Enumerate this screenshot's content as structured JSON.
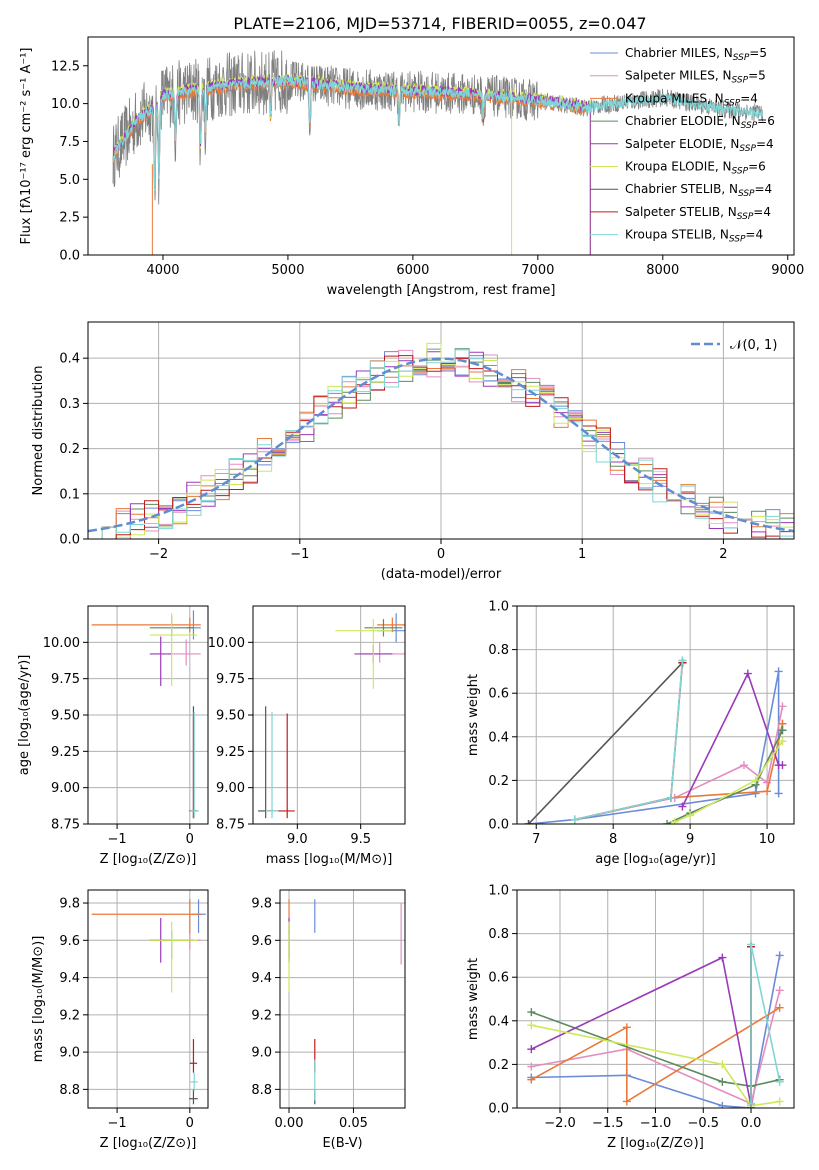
{
  "figure_title": "PLATE=2106, MJD=53714, FIBERID=0055, z=0.047",
  "colors": {
    "chabrier_miles": "#6a8cd8",
    "salpeter_miles": "#e58cc0",
    "kroupa_miles": "#e8793a",
    "chabrier_elodie": "#5d8a5f",
    "salpeter_elodie": "#9a3ab8",
    "kroupa_elodie": "#cde85a",
    "chabrier_stelib": "#555555",
    "salpeter_stelib": "#c21a1a",
    "kroupa_stelib": "#7fd6d6",
    "data": "#7f7f7f",
    "grid": "#b0b0b0",
    "gauss": "#5f8dd3"
  },
  "legend_entries": [
    {
      "label": "Chabrier MILES, N",
      "sub": "SSP",
      "tail": "=5",
      "color": "#6a8cd8"
    },
    {
      "label": "Salpeter MILES, N",
      "sub": "SSP",
      "tail": "=5",
      "color": "#e58cc0"
    },
    {
      "label": "Kroupa MILES, N",
      "sub": "SSP",
      "tail": "=4",
      "color": "#e8793a"
    },
    {
      "label": "Chabrier ELODIE, N",
      "sub": "SSP",
      "tail": "=6",
      "color": "#5d8a5f"
    },
    {
      "label": "Salpeter ELODIE, N",
      "sub": "SSP",
      "tail": "=4",
      "color": "#9a3ab8"
    },
    {
      "label": "Kroupa ELODIE, N",
      "sub": "SSP",
      "tail": "=6",
      "color": "#cde85a"
    },
    {
      "label": "Chabrier STELIB, N",
      "sub": "SSP",
      "tail": "=4",
      "color": "#555555"
    },
    {
      "label": "Salpeter STELIB, N",
      "sub": "SSP",
      "tail": "=4",
      "color": "#c21a1a"
    },
    {
      "label": "Kroupa STELIB, N",
      "sub": "SSP",
      "tail": "=4",
      "color": "#7fd6d6"
    }
  ],
  "chart_data": [
    {
      "id": "spectrum",
      "type": "line",
      "xlabel": "wavelength [Angstrom, rest frame]",
      "ylabel": "Flux [fλ10⁻¹⁷ erg cm⁻² s⁻¹ A⁻¹]",
      "xlim": [
        3400,
        9050
      ],
      "ylim": [
        0,
        14.4
      ],
      "xticks": [
        "4000",
        "5000",
        "6000",
        "7000",
        "8000",
        "9000"
      ],
      "yticks": [
        "0.0",
        "2.5",
        "5.0",
        "7.5",
        "10.0",
        "12.5"
      ],
      "continuum": {
        "x": [
          3600,
          3700,
          3800,
          3900,
          4000,
          4200,
          4500,
          5000,
          5500,
          6000,
          6500,
          7000,
          7400,
          7500,
          8000,
          8500,
          8800
        ],
        "y": [
          6.5,
          7.8,
          9.0,
          9.6,
          10.5,
          10.8,
          11.2,
          11.5,
          11.0,
          10.8,
          10.6,
          10.2,
          9.7,
          9.9,
          10.4,
          9.6,
          9.4
        ]
      },
      "grid": false,
      "legend": "top-right"
    },
    {
      "id": "residuals",
      "type": "histogram",
      "xlabel": "(data-model)/error",
      "ylabel": "Normed distribution",
      "xlim": [
        -2.5,
        2.5
      ],
      "ylim": [
        0,
        0.48
      ],
      "xticks": [
        "−2",
        "−1",
        "0",
        "1",
        "2"
      ],
      "yticks": [
        "0.0",
        "0.1",
        "0.2",
        "0.3",
        "0.4"
      ],
      "bin_width": 0.1,
      "gauss_label": "𝒩(0, 1)",
      "grid": true,
      "legend": "top-right"
    },
    {
      "id": "age_vs_Z",
      "type": "errorbar",
      "xlabel": "Z [log₁₀(Z/Z⊙)]",
      "ylabel": "age  [log₁₀(age/yr)]",
      "xlim": [
        -1.4,
        0.25
      ],
      "ylim": [
        8.75,
        10.25
      ],
      "xticks": [
        -1,
        0
      ],
      "yticks": [
        8.75,
        9.0,
        9.25,
        9.5,
        9.75,
        10.0
      ],
      "points": [
        {
          "x": 0.05,
          "y": 10.1,
          "xerr": [
            0.1,
            0.1
          ],
          "yerr": [
            0.08,
            0.12
          ],
          "color": "#6a8cd8"
        },
        {
          "x": -0.05,
          "y": 9.92,
          "xerr": [
            0.25,
            0.2
          ],
          "yerr": [
            0.08,
            0.1
          ],
          "color": "#e58cc0"
        },
        {
          "x": 0.0,
          "y": 10.12,
          "xerr": [
            1.35,
            0.15
          ],
          "yerr": [
            0.05,
            0.05
          ],
          "color": "#e8793a"
        },
        {
          "x": -0.25,
          "y": 10.1,
          "xerr": [
            0.3,
            0.3
          ],
          "yerr": [
            0.06,
            0.08
          ],
          "color": "#5d8a5f"
        },
        {
          "x": -0.4,
          "y": 9.92,
          "xerr": [
            0.15,
            0.15
          ],
          "yerr": [
            0.22,
            0.12
          ],
          "color": "#9a3ab8"
        },
        {
          "x": -0.25,
          "y": 10.05,
          "xerr": [
            0.3,
            0.35
          ],
          "yerr": [
            0.35,
            0.15
          ],
          "color": "#cde85a"
        },
        {
          "x": 0.05,
          "y": 8.84,
          "xerr": [
            0.06,
            0.06
          ],
          "yerr": [
            0.05,
            0.72
          ],
          "color": "#555555"
        },
        {
          "x": 0.05,
          "y": 8.84,
          "xerr": [
            0.05,
            0.05
          ],
          "yerr": [
            0.05,
            0.65
          ],
          "color": "#c21a1a"
        },
        {
          "x": 0.06,
          "y": 8.84,
          "xerr": [
            0.06,
            0.06
          ],
          "yerr": [
            0.05,
            0.68
          ],
          "color": "#7fd6d6"
        }
      ]
    },
    {
      "id": "age_vs_mass",
      "type": "errorbar",
      "xlabel": "mass [log₁₀(M/M⊙)]",
      "ylabel": "",
      "xlim": [
        8.65,
        9.85
      ],
      "ylim": [
        8.75,
        10.25
      ],
      "xticks": [
        9.0,
        9.5
      ],
      "yticks": [
        8.75,
        9.0,
        9.25,
        9.5,
        9.75,
        10.0
      ],
      "points": [
        {
          "x": 9.78,
          "y": 10.08,
          "xerr": [
            0.15,
            0.12
          ],
          "yerr": [
            0.08,
            0.12
          ],
          "color": "#6a8cd8"
        },
        {
          "x": 9.65,
          "y": 9.92,
          "xerr": [
            0.15,
            0.2
          ],
          "yerr": [
            0.06,
            0.08
          ],
          "color": "#e58cc0"
        },
        {
          "x": 9.75,
          "y": 10.12,
          "xerr": [
            0.12,
            0.1
          ],
          "yerr": [
            0.05,
            0.05
          ],
          "color": "#e8793a"
        },
        {
          "x": 9.68,
          "y": 10.1,
          "xerr": [
            0.15,
            0.15
          ],
          "yerr": [
            0.06,
            0.06
          ],
          "color": "#5d8a5f"
        },
        {
          "x": 9.6,
          "y": 9.92,
          "xerr": [
            0.15,
            0.15
          ],
          "yerr": [
            0.06,
            0.06
          ],
          "color": "#9a3ab8"
        },
        {
          "x": 9.6,
          "y": 10.08,
          "xerr": [
            0.3,
            0.15
          ],
          "yerr": [
            0.4,
            0.08
          ],
          "color": "#cde85a"
        },
        {
          "x": 8.75,
          "y": 8.84,
          "xerr": [
            0.06,
            0.06
          ],
          "yerr": [
            0.05,
            0.72
          ],
          "color": "#555555"
        },
        {
          "x": 8.92,
          "y": 8.84,
          "xerr": [
            0.15,
            0.06
          ],
          "yerr": [
            0.05,
            0.67
          ],
          "color": "#c21a1a"
        },
        {
          "x": 8.8,
          "y": 8.84,
          "xerr": [
            0.05,
            0.05
          ],
          "yerr": [
            0.05,
            0.68
          ],
          "color": "#7fd6d6"
        }
      ]
    },
    {
      "id": "weight_vs_age",
      "type": "line",
      "xlabel": "age  [log₁₀(age/yr)]",
      "ylabel": "mass weight",
      "xlim": [
        6.75,
        10.35
      ],
      "ylim": [
        0,
        1.0
      ],
      "xticks": [
        7,
        8,
        9,
        10
      ],
      "yticks": [
        0.0,
        0.2,
        0.4,
        0.6,
        0.8,
        1.0
      ],
      "series": [
        {
          "color": "#6a8cd8",
          "x": [
            6.9,
            7.5,
            9.85,
            10.15,
            10.15
          ],
          "y": [
            0.0,
            0.02,
            0.14,
            0.7,
            0.14
          ]
        },
        {
          "color": "#e58cc0",
          "x": [
            7.5,
            8.8,
            9.7,
            10.0,
            10.2
          ],
          "y": [
            0.02,
            0.12,
            0.27,
            0.19,
            0.54
          ]
        },
        {
          "color": "#e8793a",
          "x": [
            7.5,
            8.75,
            10.0,
            10.2,
            10.2
          ],
          "y": [
            0.02,
            0.12,
            0.15,
            0.46,
            0.46
          ]
        },
        {
          "color": "#5d8a5f",
          "x": [
            8.7,
            9.0,
            9.85,
            10.2,
            10.2
          ],
          "y": [
            0.0,
            0.05,
            0.18,
            0.43,
            0.43
          ]
        },
        {
          "color": "#9a3ab8",
          "x": [
            8.9,
            9.75,
            10.15,
            10.2
          ],
          "y": [
            0.08,
            0.69,
            0.27,
            0.27
          ]
        },
        {
          "color": "#cde85a",
          "x": [
            8.8,
            9.0,
            9.85,
            10.2,
            10.2
          ],
          "y": [
            0.01,
            0.04,
            0.2,
            0.38,
            0.38
          ]
        },
        {
          "color": "#555555",
          "x": [
            6.9,
            8.9,
            8.9
          ],
          "y": [
            0.0,
            0.74,
            0.74
          ]
        },
        {
          "color": "#c21a1a",
          "x": [
            7.5,
            8.75,
            8.9,
            8.9
          ],
          "y": [
            0.02,
            0.12,
            0.74,
            0.74
          ]
        },
        {
          "color": "#7fd6d6",
          "x": [
            7.5,
            8.75,
            8.9,
            8.9
          ],
          "y": [
            0.02,
            0.12,
            0.75,
            0.75
          ]
        }
      ]
    },
    {
      "id": "mass_vs_Z",
      "type": "errorbar",
      "xlabel": "Z [log₁₀(Z/Z⊙)]",
      "ylabel": "mass [log₁₀(M/M⊙)]",
      "xlim": [
        -1.4,
        0.25
      ],
      "ylim": [
        8.7,
        9.87
      ],
      "xticks": [
        -1,
        0
      ],
      "yticks": [
        8.8,
        9.0,
        9.2,
        9.4,
        9.6,
        9.8
      ],
      "points": [
        {
          "x": 0.12,
          "y": 9.74,
          "xerr": [
            0.1,
            0.1
          ],
          "yerr": [
            0.1,
            0.08
          ],
          "color": "#6a8cd8"
        },
        {
          "x": 0.0,
          "y": 9.6,
          "xerr": [
            0.2,
            0.15
          ],
          "yerr": [
            0.05,
            0.05
          ],
          "color": "#e58cc0"
        },
        {
          "x": 0.0,
          "y": 9.74,
          "xerr": [
            1.35,
            0.15
          ],
          "yerr": [
            0.1,
            0.08
          ],
          "color": "#e8793a"
        },
        {
          "x": -0.25,
          "y": 9.6,
          "xerr": [
            0.3,
            0.3
          ],
          "yerr": [
            0.1,
            0.05
          ],
          "color": "#5d8a5f"
        },
        {
          "x": -0.4,
          "y": 9.6,
          "xerr": [
            0.15,
            0.15
          ],
          "yerr": [
            0.12,
            0.12
          ],
          "color": "#9a3ab8"
        },
        {
          "x": -0.25,
          "y": 9.6,
          "xerr": [
            0.3,
            0.35
          ],
          "yerr": [
            0.28,
            0.1
          ],
          "color": "#cde85a"
        },
        {
          "x": 0.05,
          "y": 8.75,
          "xerr": [
            0.06,
            0.06
          ],
          "yerr": [
            0.03,
            0.05
          ],
          "color": "#555555"
        },
        {
          "x": 0.05,
          "y": 8.94,
          "xerr": [
            0.05,
            0.05
          ],
          "yerr": [
            0.05,
            0.13
          ],
          "color": "#c21a1a"
        },
        {
          "x": 0.06,
          "y": 8.84,
          "xerr": [
            0.05,
            0.05
          ],
          "yerr": [
            0.05,
            0.05
          ],
          "color": "#7fd6d6"
        }
      ]
    },
    {
      "id": "mass_vs_ebv",
      "type": "errorbar",
      "xlabel": "E(B-V)",
      "ylabel": "",
      "xlim": [
        -0.007,
        0.09
      ],
      "ylim": [
        8.7,
        9.87
      ],
      "xticks": [
        0.0,
        0.05
      ],
      "yticks": [
        8.8,
        9.0,
        9.2,
        9.4,
        9.6,
        9.8
      ],
      "points": [
        {
          "x": 0.02,
          "y": 9.74,
          "xerr": [
            0,
            0
          ],
          "yerr": [
            0.1,
            0.08
          ],
          "color": "#6a8cd8"
        },
        {
          "x": 0.087,
          "y": 9.6,
          "xerr": [
            0,
            0
          ],
          "yerr": [
            0.13,
            0.2
          ],
          "color": "#e58cc0"
        },
        {
          "x": 0.0,
          "y": 9.74,
          "xerr": [
            0,
            0
          ],
          "yerr": [
            0.1,
            0.08
          ],
          "color": "#e8793a"
        },
        {
          "x": 0.0,
          "y": 9.6,
          "xerr": [
            0,
            0
          ],
          "yerr": [
            0.1,
            0.05
          ],
          "color": "#5d8a5f"
        },
        {
          "x": 0.0,
          "y": 9.6,
          "xerr": [
            0,
            0
          ],
          "yerr": [
            0.12,
            0.12
          ],
          "color": "#9a3ab8"
        },
        {
          "x": 0.0,
          "y": 9.6,
          "xerr": [
            0,
            0
          ],
          "yerr": [
            0.28,
            0.1
          ],
          "color": "#cde85a"
        },
        {
          "x": 0.02,
          "y": 8.75,
          "xerr": [
            0,
            0
          ],
          "yerr": [
            0.03,
            0.05
          ],
          "color": "#555555"
        },
        {
          "x": 0.02,
          "y": 8.94,
          "xerr": [
            0,
            0
          ],
          "yerr": [
            0.05,
            0.13
          ],
          "color": "#c21a1a"
        },
        {
          "x": 0.02,
          "y": 8.84,
          "xerr": [
            0,
            0
          ],
          "yerr": [
            0.1,
            0.12
          ],
          "color": "#7fd6d6"
        }
      ]
    },
    {
      "id": "weight_vs_Z",
      "type": "line",
      "xlabel": "Z [log₁₀(Z/Z⊙)]",
      "ylabel": "mass weight",
      "xlim": [
        -2.45,
        0.45
      ],
      "ylim": [
        0,
        1.0
      ],
      "xticks": [
        -2.0,
        -1.5,
        -1.0,
        -0.5,
        0.0
      ],
      "series": [
        {
          "color": "#6a8cd8",
          "x": [
            -2.3,
            -1.3,
            -0.3,
            0.0,
            0.3
          ],
          "y": [
            0.14,
            0.15,
            0.01,
            0.0,
            0.7
          ]
        },
        {
          "color": "#e58cc0",
          "x": [
            -2.3,
            -1.3,
            0.0,
            0.3
          ],
          "y": [
            0.19,
            0.27,
            0.02,
            0.54
          ]
        },
        {
          "color": "#e8793a",
          "x": [
            -2.3,
            -1.3,
            -1.3,
            0.3
          ],
          "y": [
            0.13,
            0.37,
            0.03,
            0.46
          ]
        },
        {
          "color": "#5d8a5f",
          "x": [
            -2.3,
            -0.3,
            0.0,
            0.3
          ],
          "y": [
            0.44,
            0.12,
            0.1,
            0.13
          ]
        },
        {
          "color": "#9a3ab8",
          "x": [
            -2.3,
            -0.3,
            0.0
          ],
          "y": [
            0.27,
            0.69,
            0.01
          ]
        },
        {
          "color": "#cde85a",
          "x": [
            -2.3,
            -0.3,
            0.0,
            0.3
          ],
          "y": [
            0.38,
            0.2,
            0.01,
            0.03
          ]
        },
        {
          "color": "#555555",
          "x": [
            0.0,
            0.0
          ],
          "y": [
            0.0,
            0.74
          ]
        },
        {
          "color": "#c21a1a",
          "x": [
            0.0,
            0.0
          ],
          "y": [
            0.02,
            0.74
          ]
        },
        {
          "color": "#7fd6d6",
          "x": [
            0.0,
            0.0,
            0.3
          ],
          "y": [
            0.02,
            0.75,
            0.12
          ]
        }
      ]
    }
  ]
}
